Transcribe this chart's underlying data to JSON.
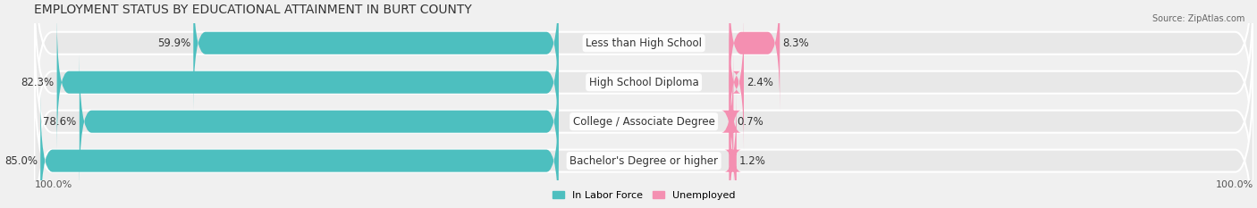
{
  "title": "EMPLOYMENT STATUS BY EDUCATIONAL ATTAINMENT IN BURT COUNTY",
  "source": "Source: ZipAtlas.com",
  "categories": [
    "Less than High School",
    "High School Diploma",
    "College / Associate Degree",
    "Bachelor's Degree or higher"
  ],
  "in_labor_force": [
    59.9,
    82.3,
    78.6,
    85.0
  ],
  "unemployed": [
    8.3,
    2.4,
    0.7,
    1.2
  ],
  "labor_force_color": "#4DBFBF",
  "unemployed_color": "#F48FB1",
  "bar_height": 0.55,
  "xlim_left": -100,
  "xlim_right": 100,
  "background_color": "#f0f0f0",
  "bar_bg_color": "#e0e0e0",
  "left_label": "100.0%",
  "right_label": "100.0%",
  "title_fontsize": 10,
  "label_fontsize": 8.5,
  "tick_fontsize": 8
}
